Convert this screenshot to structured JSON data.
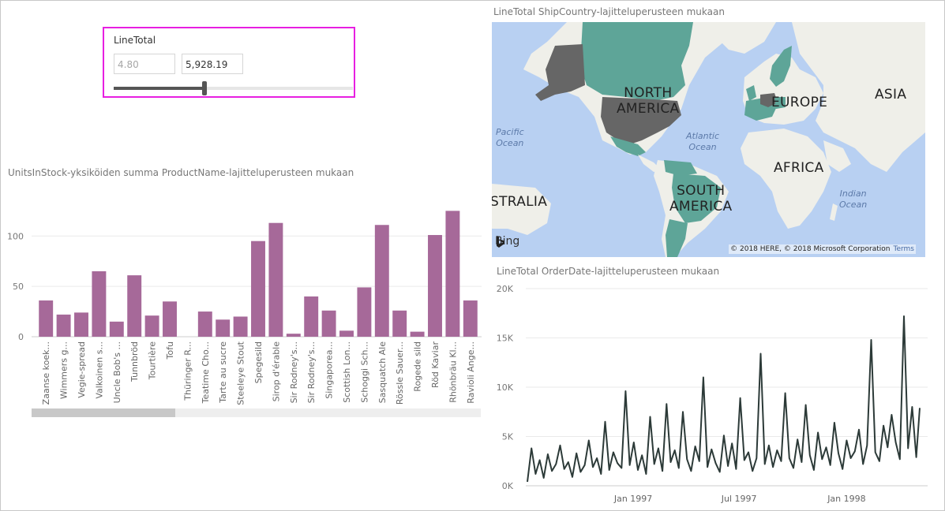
{
  "slicer": {
    "title": "LineTotal",
    "min_value": "4.80",
    "max_value": "5,928.19",
    "slider_range": [
      0.0,
      0.38
    ]
  },
  "bar_chart": {
    "title": "UnitsInStock-yksiköiden summa ProductName-lajitteluperusteen mukaan",
    "color": "#a66999",
    "scrollbar_position": [
      0.0,
      0.32
    ]
  },
  "map": {
    "title": "LineTotal ShipCountry-lajitteluperusteen mukaan",
    "labels": {
      "north_america": "NORTH\nAMERICA",
      "europe": "EUROPE",
      "asia": "ASIA",
      "africa": "AFRICA",
      "south_america": "SOUTH\nAMERICA",
      "australia": "STRALIA",
      "pacific": "Pacific\nOcean",
      "atlantic": "Atlantic\nOcean",
      "indian": "Indian\nOcean"
    },
    "bing_label": "Bing",
    "copyright": "© 2018 HERE, © 2018 Microsoft Corporation",
    "terms": "Terms",
    "colors": {
      "water": "#b8d0f2",
      "land": "#efefe9",
      "teal": "#5ea598",
      "dark": "#666666"
    }
  },
  "line_chart": {
    "title": "LineTotal OrderDate-lajitteluperusteen mukaan",
    "color": "#2c3a38"
  },
  "chart_data": [
    {
      "type": "bar",
      "title": "UnitsInStock-yksiköiden summa ProductName-lajitteluperusteen mukaan",
      "categories": [
        "Zaanse koek...",
        "Wimmers g...",
        "Vegie-spread",
        "Valkoinen s...",
        "Uncle Bob's ...",
        "Tunnbröd",
        "Tourtière",
        "Tofu",
        "Thüringer R...",
        "Teatime Cho...",
        "Tarte au sucre",
        "Steeleye Stout",
        "Spegesild",
        "Sirop d'érable",
        "Sir Rodney's...",
        "Sir Rodney's...",
        "Singaporea...",
        "Scottish Lon...",
        "Schoggi Sch...",
        "Sasquatch Ale",
        "Rössle Sauer...",
        "Rogede sild",
        "Röd Kaviar",
        "Rhönbräu Kl...",
        "Ravioli Ange..."
      ],
      "values": [
        36,
        22,
        24,
        65,
        15,
        61,
        21,
        35,
        0,
        25,
        17,
        20,
        95,
        113,
        3,
        40,
        26,
        6,
        49,
        111,
        26,
        5,
        101,
        125,
        36
      ],
      "yticks": [
        0,
        50,
        100
      ],
      "ylim": [
        0,
        130
      ],
      "grid": true
    },
    {
      "type": "line",
      "title": "LineTotal OrderDate-lajitteluperusteen mukaan",
      "x_ticks": [
        "Jan 1997",
        "Jul 1997",
        "Jan 1998"
      ],
      "yticks": [
        "0K",
        "5K",
        "10K",
        "15K",
        "20K"
      ],
      "ylim": [
        0,
        20000
      ],
      "x_range": [
        "1996-07-04",
        "1998-05-06"
      ],
      "grid": true,
      "series": [
        {
          "x": [
            "1996-07-04",
            "1996-07-11",
            "1996-07-18",
            "1996-07-25",
            "1996-08-01",
            "1996-08-08",
            "1996-08-15",
            "1996-08-22",
            "1996-08-29",
            "1996-09-05",
            "1996-09-12",
            "1996-09-19",
            "1996-09-26",
            "1996-10-03",
            "1996-10-10",
            "1996-10-17",
            "1996-10-24",
            "1996-10-31",
            "1996-11-07",
            "1996-11-14",
            "1996-11-21",
            "1996-11-28",
            "1996-12-05",
            "1996-12-12",
            "1996-12-19",
            "1996-12-26",
            "1997-01-02",
            "1997-01-09",
            "1997-01-16",
            "1997-01-23",
            "1997-01-30",
            "1997-02-06",
            "1997-02-13",
            "1997-02-20",
            "1997-02-27",
            "1997-03-06",
            "1997-03-13",
            "1997-03-20",
            "1997-03-27",
            "1997-04-03",
            "1997-04-10",
            "1997-04-17",
            "1997-04-24",
            "1997-05-01",
            "1997-05-08",
            "1997-05-15",
            "1997-05-22",
            "1997-05-29",
            "1997-06-05",
            "1997-06-12",
            "1997-06-19",
            "1997-06-26",
            "1997-07-03",
            "1997-07-10",
            "1997-07-17",
            "1997-07-24",
            "1997-07-31",
            "1997-08-07",
            "1997-08-14",
            "1997-08-21",
            "1997-08-28",
            "1997-09-04",
            "1997-09-11",
            "1997-09-18",
            "1997-09-25",
            "1997-10-02",
            "1997-10-09",
            "1997-10-16",
            "1997-10-23",
            "1997-10-30",
            "1997-11-06",
            "1997-11-13",
            "1997-11-20",
            "1997-11-27",
            "1997-12-04",
            "1997-12-11",
            "1997-12-18",
            "1997-12-25",
            "1998-01-01",
            "1998-01-08",
            "1998-01-15",
            "1998-01-22",
            "1998-01-29",
            "1998-02-05",
            "1998-02-12",
            "1998-02-19",
            "1998-02-26",
            "1998-03-05",
            "1998-03-12",
            "1998-03-19",
            "1998-03-26",
            "1998-04-02",
            "1998-04-09",
            "1998-04-16",
            "1998-04-23",
            "1998-04-30",
            "1998-05-06"
          ],
          "values": [
            400,
            3800,
            1200,
            2600,
            800,
            3200,
            1500,
            2200,
            4100,
            1700,
            2400,
            900,
            3300,
            1400,
            2100,
            4600,
            1900,
            2800,
            1200,
            6500,
            1600,
            3400,
            2300,
            1800,
            9600,
            2100,
            4400,
            1600,
            3100,
            1200,
            7000,
            2200,
            3800,
            1500,
            8300,
            2400,
            3600,
            1800,
            7500,
            2700,
            1500,
            4000,
            2500,
            11000,
            1900,
            3700,
            2300,
            1400,
            5100,
            2000,
            4300,
            1700,
            8900,
            2600,
            3400,
            1500,
            2800,
            13400,
            2200,
            4100,
            1900,
            3600,
            2500,
            9400,
            2800,
            1800,
            4700,
            2400,
            8200,
            3100,
            1600,
            5400,
            2700,
            3900,
            2100,
            6400,
            3300,
            1700,
            4600,
            2800,
            3500,
            5700,
            2200,
            4100,
            14800,
            3400,
            2500,
            6100,
            3900,
            7200,
            4400,
            2700,
            17200,
            3800,
            8000,
            2900,
            7900
          ]
        }
      ]
    }
  ]
}
